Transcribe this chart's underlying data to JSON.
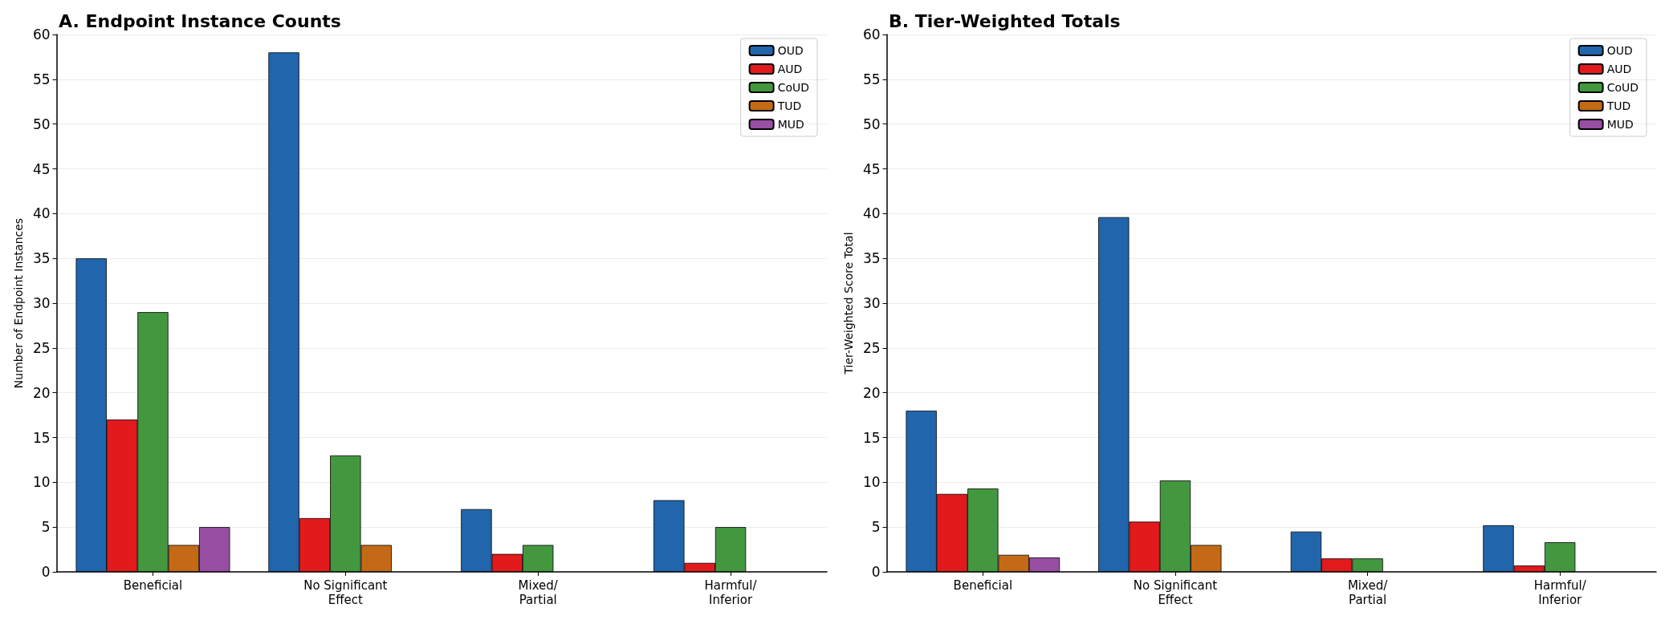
{
  "chart_data": [
    {
      "type": "bar",
      "title": "A. Endpoint Instance Counts",
      "ylabel": "Number of Endpoint Instances",
      "categories": [
        "Beneficial",
        "No Significant\nEffect",
        "Mixed/\nPartial",
        "Harmful/\nInferior"
      ],
      "series": [
        {
          "name": "OUD",
          "color": "#2166ac",
          "values": [
            35,
            58,
            7,
            8
          ]
        },
        {
          "name": "AUD",
          "color": "#e31a1c",
          "values": [
            17,
            6,
            2,
            1
          ]
        },
        {
          "name": "CoUD",
          "color": "#43983f",
          "values": [
            29,
            13,
            3,
            5
          ]
        },
        {
          "name": "TUD",
          "color": "#c46a17",
          "values": [
            3,
            3,
            null,
            null
          ]
        },
        {
          "name": "MUD",
          "color": "#984ea3",
          "values": [
            5,
            null,
            null,
            null
          ]
        }
      ],
      "ylim": [
        0,
        60
      ],
      "yticks": [
        0,
        5,
        10,
        15,
        20,
        25,
        30,
        35,
        40,
        45,
        50,
        55,
        60
      ],
      "grid": "y",
      "legend": "top right"
    },
    {
      "type": "bar",
      "title": "B. Tier-Weighted Totals",
      "ylabel": "Tier-Weighted Score Total",
      "categories": [
        "Beneficial",
        "No Significant\nEffect",
        "Mixed/\nPartial",
        "Harmful/\nInferior"
      ],
      "series": [
        {
          "name": "OUD",
          "color": "#2166ac",
          "values": [
            18,
            39.6,
            4.5,
            5.2
          ]
        },
        {
          "name": "AUD",
          "color": "#e31a1c",
          "values": [
            8.7,
            5.6,
            1.5,
            0.7
          ]
        },
        {
          "name": "CoUD",
          "color": "#43983f",
          "values": [
            9.3,
            10.2,
            1.5,
            3.3
          ]
        },
        {
          "name": "TUD",
          "color": "#c46a17",
          "values": [
            1.9,
            3,
            null,
            null
          ]
        },
        {
          "name": "MUD",
          "color": "#984ea3",
          "values": [
            1.6,
            null,
            null,
            null
          ]
        }
      ],
      "ylim": [
        0,
        60
      ],
      "yticks": [
        0,
        5,
        10,
        15,
        20,
        25,
        30,
        35,
        40,
        45,
        50,
        55,
        60
      ],
      "grid": "y",
      "legend": "top right"
    }
  ]
}
